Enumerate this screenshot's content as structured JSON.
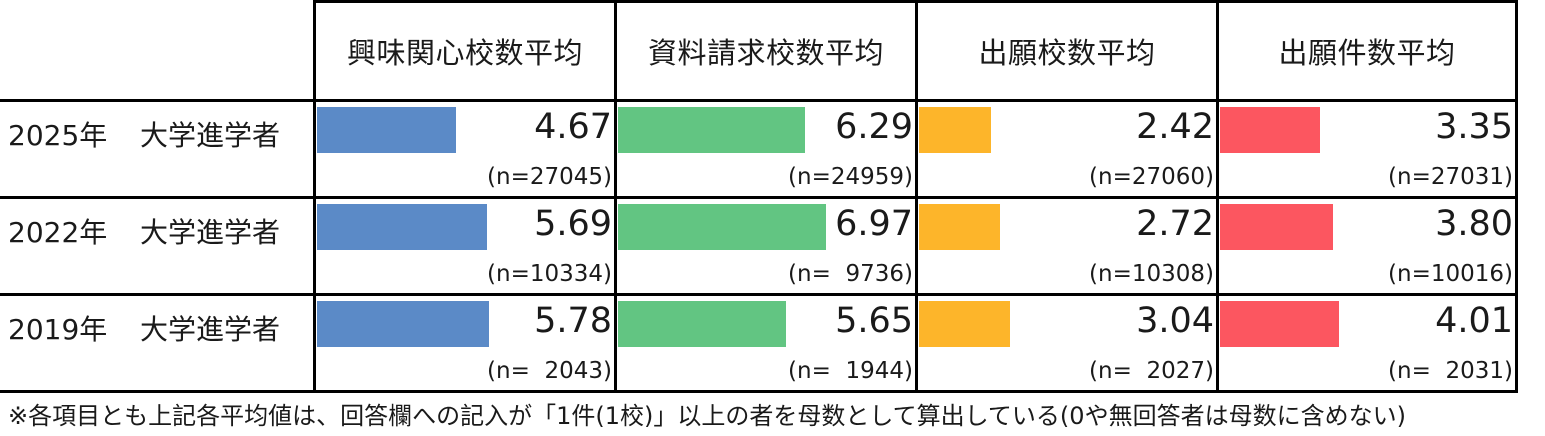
{
  "chart_data": {
    "type": "table",
    "title": "",
    "columns": [
      "興味関心校数平均",
      "資料請求校数平均",
      "出願校数平均",
      "出願件数平均"
    ],
    "bar_colors": [
      "#5b8ac7",
      "#62c582",
      "#fdb52a",
      "#fc5660"
    ],
    "bar_scale_max": 10,
    "rows": [
      {
        "year": "2025年",
        "group": "大学進学者",
        "values": [
          4.67,
          6.29,
          2.42,
          3.35
        ],
        "value_labels": [
          "4.67",
          "6.29",
          "2.42",
          "3.35"
        ],
        "n_labels": [
          "(n=27045)",
          "(n=24959)",
          "(n=27060)",
          "(n=27031)"
        ]
      },
      {
        "year": "2022年",
        "group": "大学進学者",
        "values": [
          5.69,
          6.97,
          2.72,
          3.8
        ],
        "value_labels": [
          "5.69",
          "6.97",
          "2.72",
          "3.80"
        ],
        "n_labels": [
          "(n=10334)",
          "(n=  9736)",
          "(n=10308)",
          "(n=10016)"
        ]
      },
      {
        "year": "2019年",
        "group": "大学進学者",
        "values": [
          5.78,
          5.65,
          3.04,
          4.01
        ],
        "value_labels": [
          "5.78",
          "5.65",
          "3.04",
          "4.01"
        ],
        "n_labels": [
          "(n=  2043)",
          "(n=  1944)",
          "(n=  2027)",
          "(n=  2031)"
        ]
      }
    ],
    "footnote": "※各項目とも上記各平均値は、回答欄への記入が「1件(1校)」以上の者を母数として算出している(0や無回答者は母数に含めない)"
  }
}
